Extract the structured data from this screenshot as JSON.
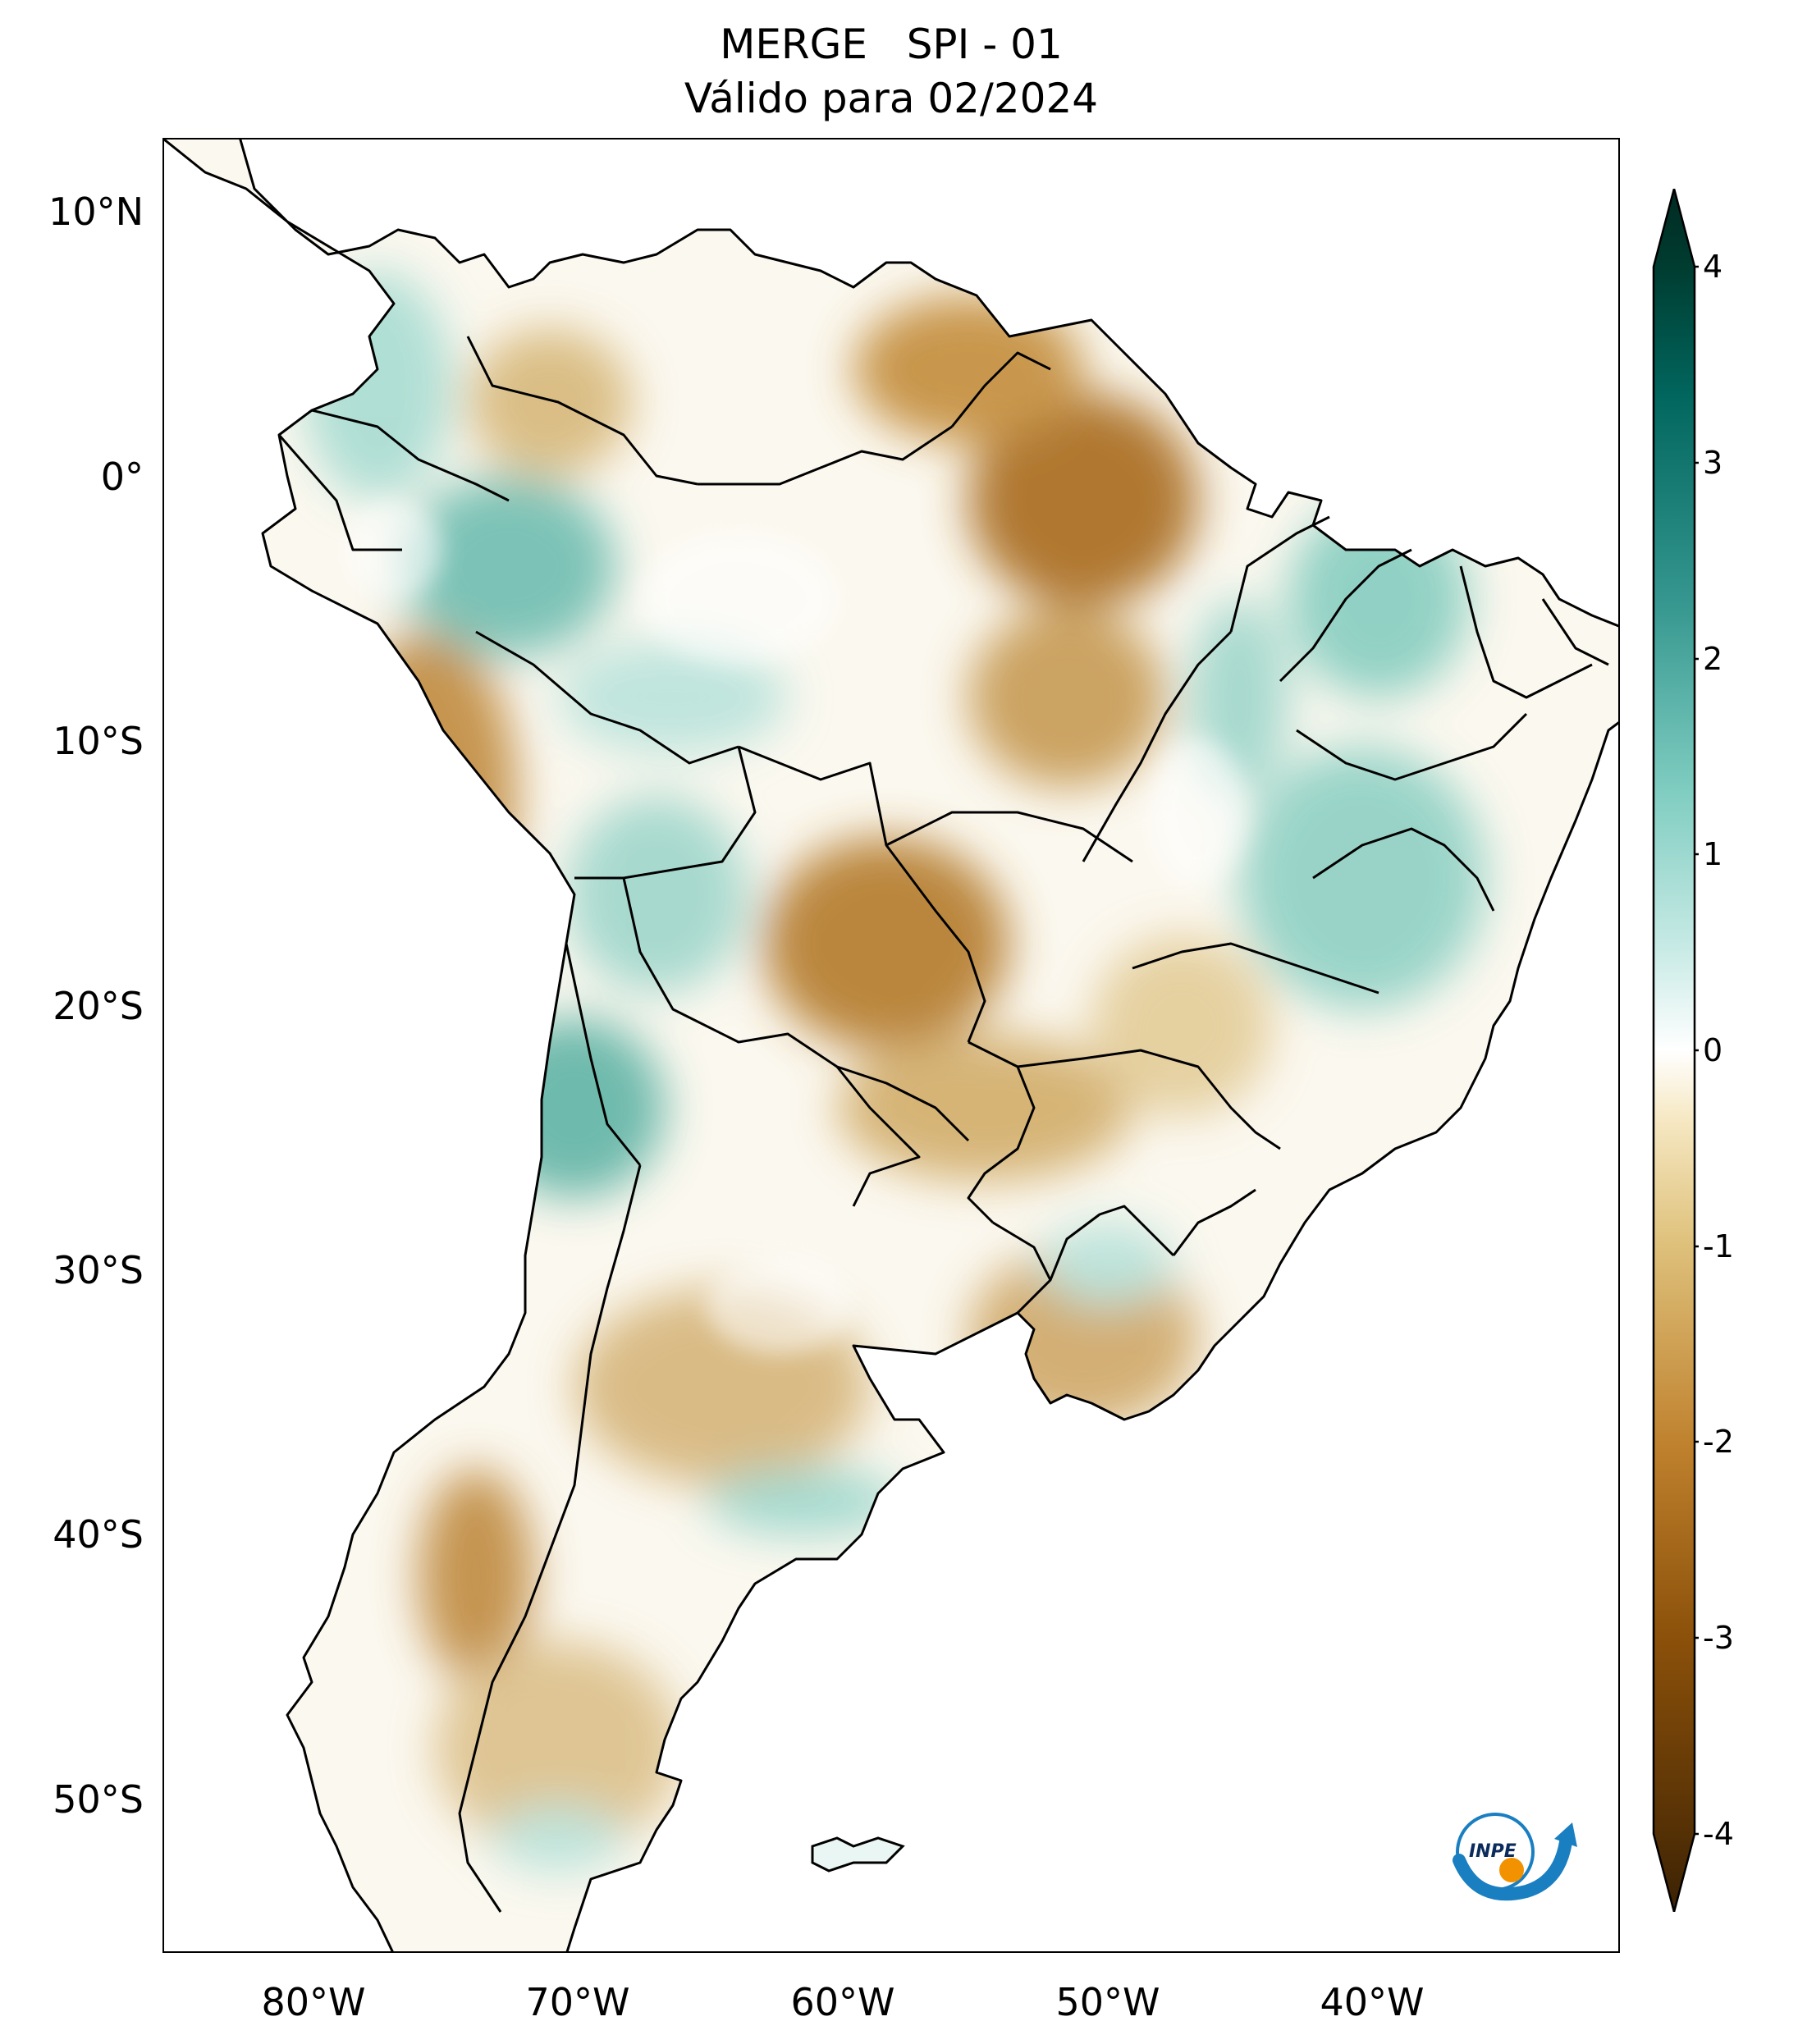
{
  "title": {
    "line1": "MERGE   SPI - 01",
    "line2": "Válido para 02/2024"
  },
  "map": {
    "region": "South America",
    "lat_ticks": [
      "10°N",
      "0°",
      "10°S",
      "20°S",
      "30°S",
      "40°S",
      "50°S"
    ],
    "lon_ticks": [
      "80°W",
      "70°W",
      "60°W",
      "50°W",
      "40°W"
    ],
    "anomaly_regions": [
      {
        "name": "northern Pará / Amapá",
        "tone": "dry",
        "level": -2.5
      },
      {
        "name": "Mato Grosso",
        "tone": "dry",
        "level": -2.2
      },
      {
        "name": "Peru interior",
        "tone": "dry",
        "level": -2.0
      },
      {
        "name": "Venezuela east",
        "tone": "dry",
        "level": -1.8
      },
      {
        "name": "Uruguay / Río de la Plata",
        "tone": "dry",
        "level": -1.5
      },
      {
        "name": "central Argentina",
        "tone": "dry",
        "level": -1.3
      },
      {
        "name": "southern Chile coast",
        "tone": "dry",
        "level": -1.6
      },
      {
        "name": "Patagonia",
        "tone": "dry",
        "level": -1.0
      },
      {
        "name": "western Amazonas",
        "tone": "wet",
        "level": 2.2
      },
      {
        "name": "Bahia / Minas Gerais",
        "tone": "wet",
        "level": 1.5
      },
      {
        "name": "Ceará / Piauí",
        "tone": "wet",
        "level": 1.6
      },
      {
        "name": "Bolivian Andes",
        "tone": "wet",
        "level": 1.4
      },
      {
        "name": "northern Argentina / Chile",
        "tone": "wet",
        "level": 2.0
      },
      {
        "name": "Colombia",
        "tone": "wet",
        "level": 1.2
      },
      {
        "name": "Buenos Aires pampas",
        "tone": "wet",
        "level": 1.3
      }
    ]
  },
  "colorbar": {
    "labels": [
      "4",
      "3",
      "2",
      "1",
      "0",
      "-1",
      "-2",
      "-3",
      "-4"
    ],
    "min": -4,
    "max": 4,
    "extend": "both",
    "colors": [
      "#543005",
      "#8c510a",
      "#bf812d",
      "#dfc27d",
      "#f6e8c3",
      "#ffffff",
      "#c7eae5",
      "#80cdc1",
      "#35978f",
      "#01665e",
      "#003c30"
    ]
  },
  "logo": {
    "text": "INPE"
  }
}
